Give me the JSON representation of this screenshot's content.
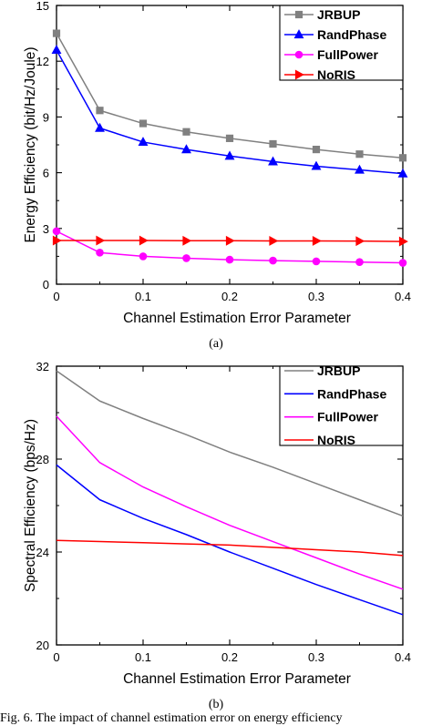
{
  "chart_data": [
    {
      "type": "line",
      "panel_label": "(a)",
      "xlabel": "Channel Estimation Error Parameter",
      "ylabel": "Energy Efficiency (bit/Hz/Joule)",
      "xlim": [
        0,
        0.4
      ],
      "ylim": [
        0,
        15
      ],
      "xticks": [
        0,
        0.1,
        0.2,
        0.3,
        0.4
      ],
      "xtick_labels": [
        "0",
        "0.1",
        "0.2",
        "0.3",
        "0.4"
      ],
      "yticks": [
        0,
        3,
        6,
        9,
        12,
        15
      ],
      "ytick_labels": [
        "0",
        "3",
        "6",
        "9",
        "12",
        "15"
      ],
      "grid": false,
      "legend_position": "top-right",
      "x": [
        0,
        0.05,
        0.1,
        0.15,
        0.2,
        0.25,
        0.3,
        0.35,
        0.4
      ],
      "series": [
        {
          "name": "JRBUP",
          "color": "#808080",
          "marker": "square",
          "values": [
            13.5,
            9.35,
            8.65,
            8.2,
            7.85,
            7.55,
            7.25,
            7.0,
            6.8
          ]
        },
        {
          "name": "RandPhase",
          "color": "#0000ff",
          "marker": "triangle-up",
          "values": [
            12.6,
            8.4,
            7.65,
            7.25,
            6.9,
            6.6,
            6.35,
            6.15,
            5.95
          ]
        },
        {
          "name": "FullPower",
          "color": "#ff00ff",
          "marker": "circle",
          "values": [
            2.85,
            1.7,
            1.5,
            1.4,
            1.32,
            1.27,
            1.23,
            1.19,
            1.15
          ]
        },
        {
          "name": "NoRIS",
          "color": "#ff0000",
          "marker": "triangle-right",
          "values": [
            2.35,
            2.35,
            2.35,
            2.34,
            2.34,
            2.33,
            2.33,
            2.32,
            2.3
          ]
        }
      ]
    },
    {
      "type": "line",
      "panel_label": "(b)",
      "xlabel": "Channel Estimation Error Parameter",
      "ylabel": "Spectral Efficiency (bps/Hz)",
      "xlim": [
        0,
        0.4
      ],
      "ylim": [
        20,
        32
      ],
      "xticks": [
        0,
        0.1,
        0.2,
        0.3,
        0.4
      ],
      "xtick_labels": [
        "0",
        "0.1",
        "0.2",
        "0.3",
        "0.4"
      ],
      "yticks": [
        20,
        24,
        28,
        32
      ],
      "ytick_labels": [
        "20",
        "24",
        "28",
        "32"
      ],
      "grid": false,
      "legend_position": "top-right",
      "x": [
        0,
        0.05,
        0.1,
        0.15,
        0.2,
        0.25,
        0.3,
        0.35,
        0.4
      ],
      "series": [
        {
          "name": "JRBUP",
          "color": "#808080",
          "marker": "none",
          "values": [
            31.8,
            30.5,
            29.75,
            29.05,
            28.3,
            27.65,
            26.95,
            26.25,
            25.55
          ]
        },
        {
          "name": "RandPhase",
          "color": "#0000ff",
          "marker": "none",
          "values": [
            27.75,
            26.25,
            25.45,
            24.75,
            24.0,
            23.3,
            22.6,
            21.95,
            21.3
          ]
        },
        {
          "name": "FullPower",
          "color": "#ff00ff",
          "marker": "none",
          "values": [
            29.85,
            27.85,
            26.8,
            25.95,
            25.15,
            24.45,
            23.75,
            23.05,
            22.4
          ]
        },
        {
          "name": "NoRIS",
          "color": "#ff0000",
          "marker": "none",
          "values": [
            24.5,
            24.45,
            24.4,
            24.35,
            24.3,
            24.2,
            24.1,
            24.0,
            23.85
          ]
        }
      ]
    }
  ],
  "caption": "Fig. 6.    The impact of channel estimation error on energy efficiency"
}
